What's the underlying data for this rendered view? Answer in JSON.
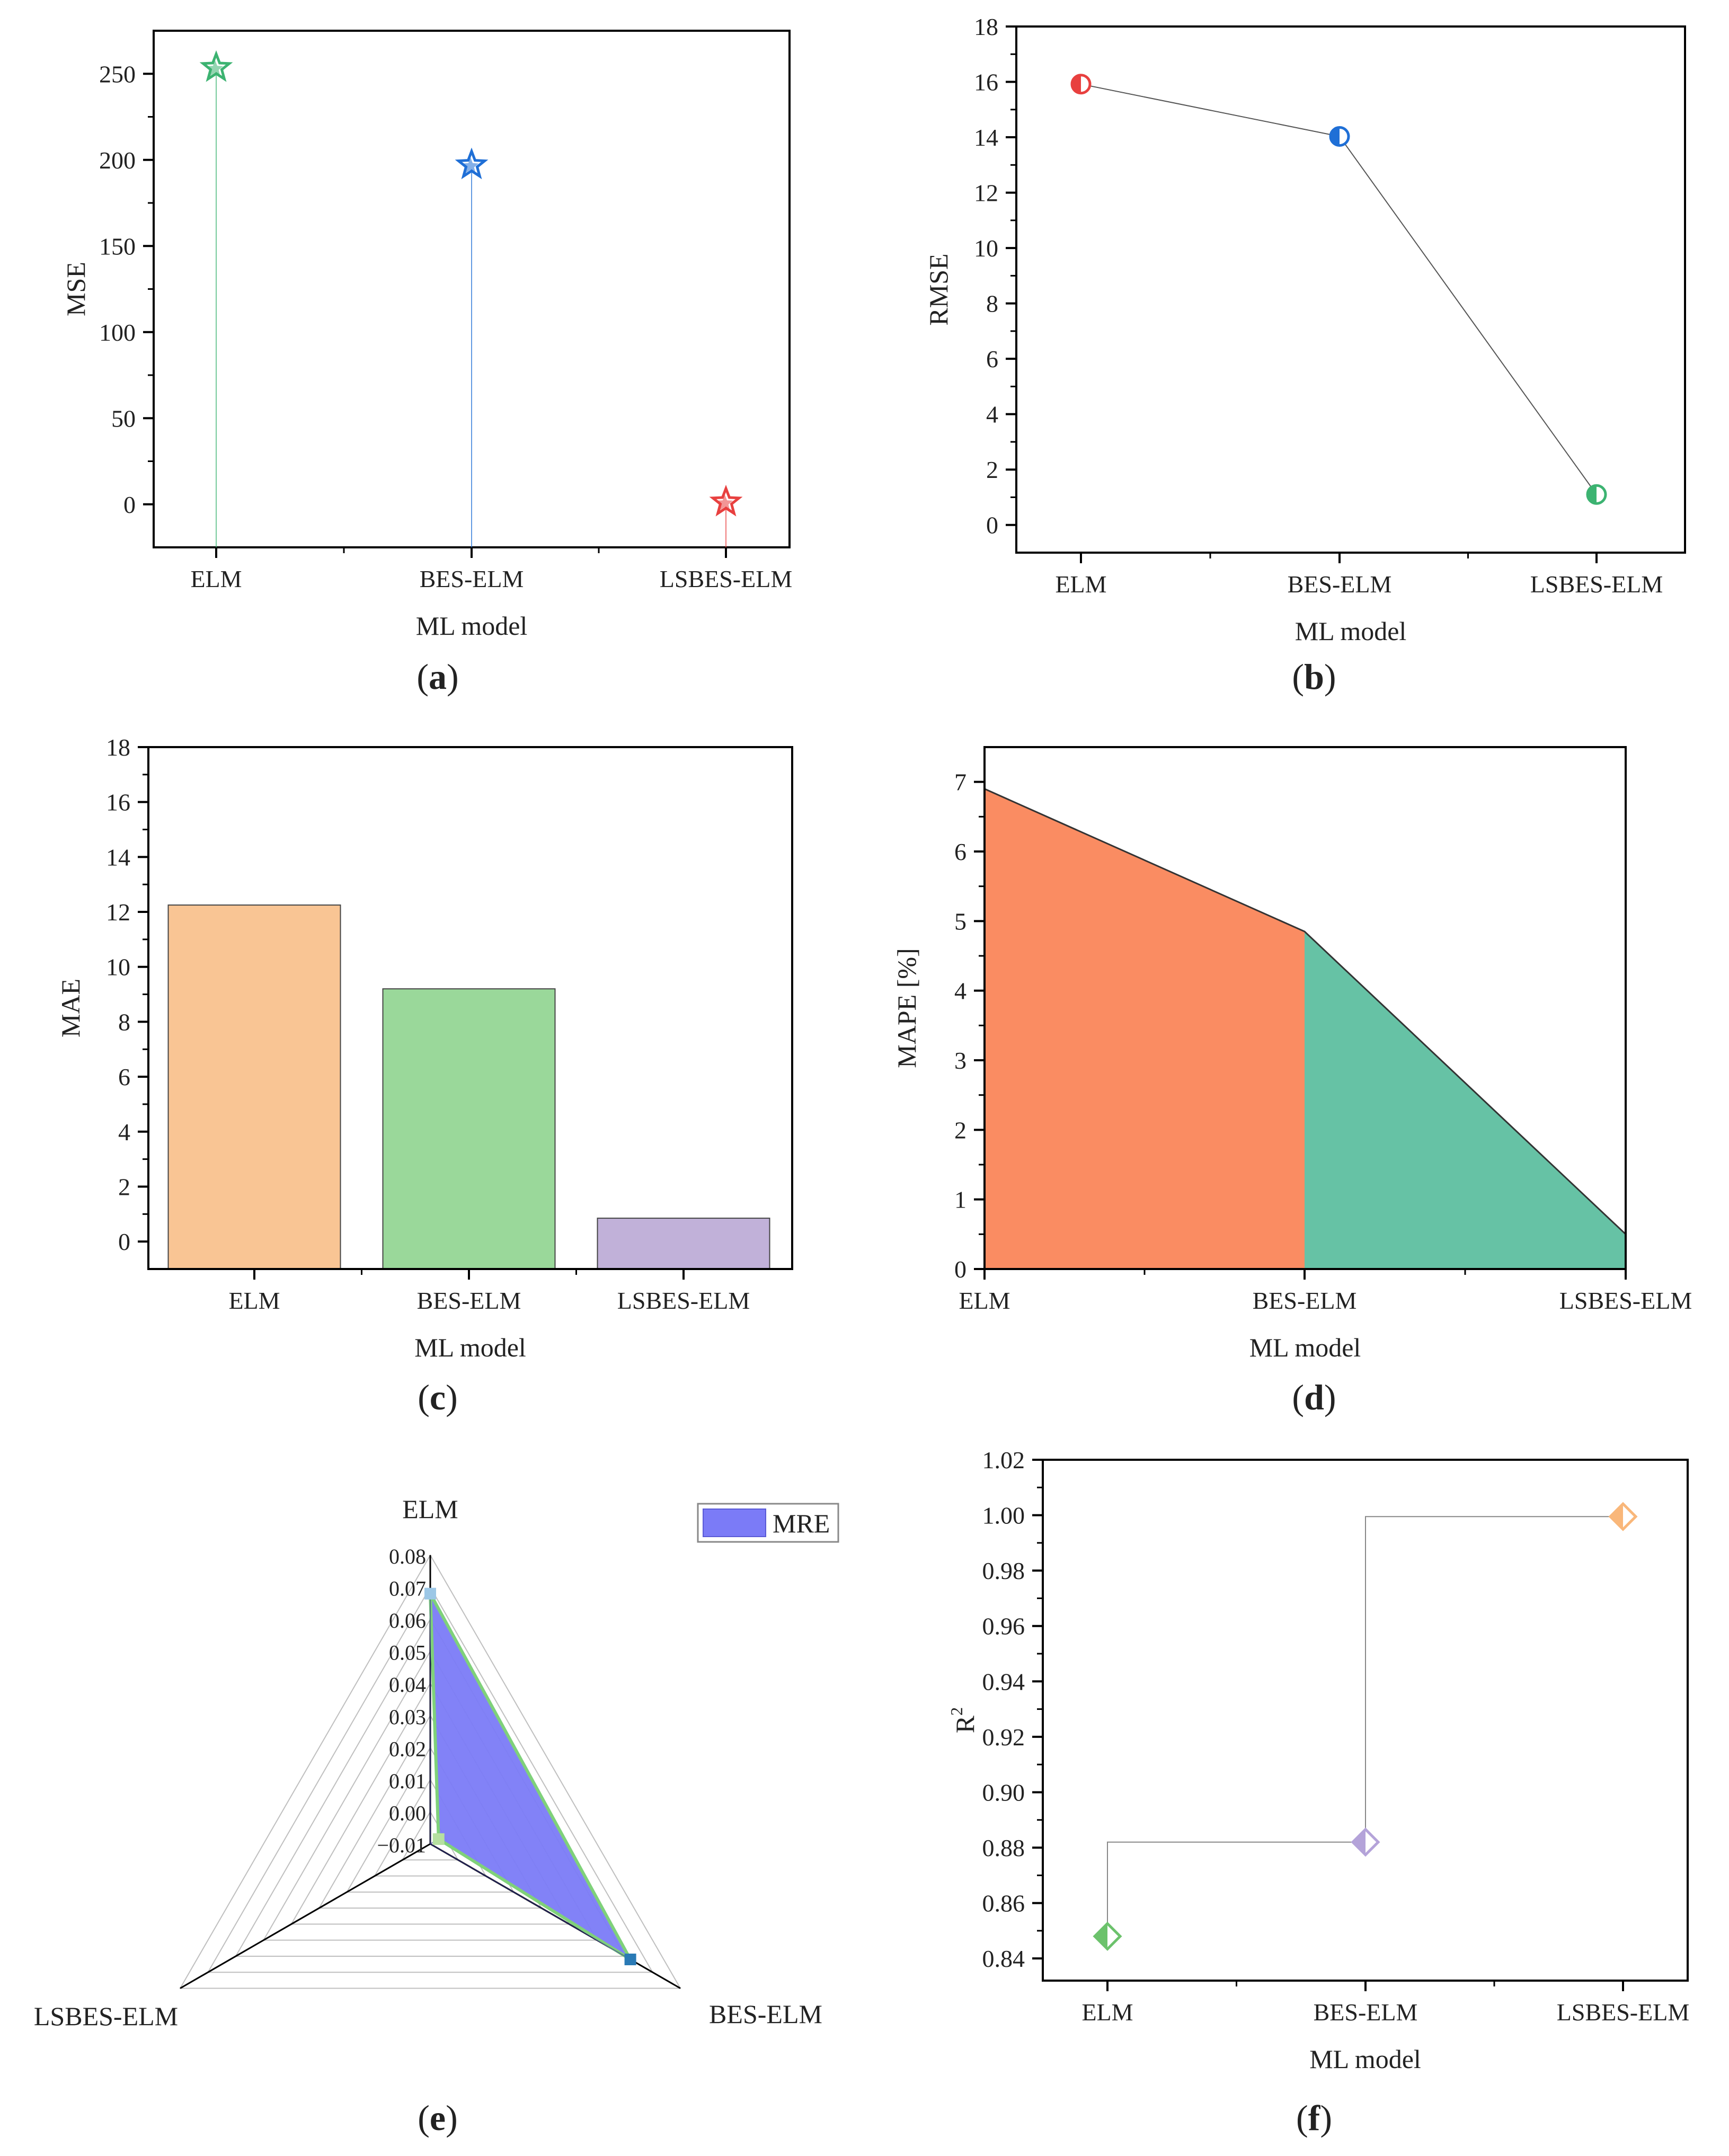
{
  "chart_data": [
    {
      "id": "a",
      "type": "stem",
      "caption_letter": "a",
      "categories": [
        "ELM",
        "BES-ELM",
        "LSBES-ELM"
      ],
      "values": [
        253.5,
        197.0,
        1.2
      ],
      "colors": [
        "#3cb371",
        "#1f6fd6",
        "#e8403f"
      ],
      "xlabel": "ML model",
      "ylabel": "MSE",
      "ylim": [
        -25,
        275
      ],
      "yticks": [
        0,
        50,
        100,
        150,
        200,
        250
      ]
    },
    {
      "id": "b",
      "type": "line",
      "caption_letter": "b",
      "categories": [
        "ELM",
        "BES-ELM",
        "LSBES-ELM"
      ],
      "values": [
        15.92,
        14.03,
        1.1
      ],
      "colors": [
        "#e8403f",
        "#1f6fd6",
        "#3cb371"
      ],
      "xlabel": "ML model",
      "ylabel": "RMSE",
      "ylim": [
        -1,
        18
      ],
      "yticks": [
        0,
        2,
        4,
        6,
        8,
        10,
        12,
        14,
        16,
        18
      ]
    },
    {
      "id": "c",
      "type": "bar",
      "caption_letter": "c",
      "categories": [
        "ELM",
        "BES-ELM",
        "LSBES-ELM"
      ],
      "values": [
        12.25,
        9.2,
        0.85
      ],
      "colors": [
        "#f9c594",
        "#9ad89a",
        "#c1b1d9"
      ],
      "xlabel": "ML model",
      "ylabel": "MAE",
      "ylim": [
        -1,
        18
      ],
      "yticks": [
        0,
        2,
        4,
        6,
        8,
        10,
        12,
        14,
        16,
        18
      ]
    },
    {
      "id": "d",
      "type": "area",
      "caption_letter": "d",
      "categories": [
        "ELM",
        "BES-ELM",
        "LSBES-ELM"
      ],
      "values": [
        6.9,
        4.85,
        0.5
      ],
      "colors": [
        "#fa8c62",
        "#66c2a5"
      ],
      "xlabel": "ML model",
      "ylabel": "MAPE [%]",
      "ylim": [
        0,
        7.5
      ],
      "yticks": [
        0,
        1,
        2,
        3,
        4,
        5,
        6,
        7
      ]
    },
    {
      "id": "e",
      "type": "radar",
      "caption_letter": "e",
      "categories": [
        "ELM",
        "BES-ELM",
        "LSBES-ELM"
      ],
      "series": [
        {
          "name": "MRE",
          "values": [
            0.068,
            0.062,
            -0.013
          ]
        }
      ],
      "rlim": [
        -0.01,
        0.08
      ],
      "rticks": [
        "-0.01",
        "0.00",
        "0.01",
        "0.02",
        "0.03",
        "0.04",
        "0.05",
        "0.06",
        "0.07",
        "0.08"
      ],
      "fill": "#7b7bf7",
      "outline": "#7fd17a",
      "legend": "MRE",
      "legend_position": "top-right"
    },
    {
      "id": "f",
      "type": "step",
      "caption_letter": "f",
      "categories": [
        "ELM",
        "BES-ELM",
        "LSBES-ELM"
      ],
      "values": [
        0.848,
        0.882,
        0.9995
      ],
      "colors": [
        "#6cc26c",
        "#b4a3d9",
        "#f9b77a"
      ],
      "xlabel": "ML model",
      "ylabel": "R",
      "ylabel_sup": "2",
      "ylim": [
        0.832,
        1.02
      ],
      "yticks": [
        "0.84",
        "0.86",
        "0.88",
        "0.90",
        "0.92",
        "0.94",
        "0.96",
        "0.98",
        "1.00",
        "1.02"
      ]
    }
  ]
}
